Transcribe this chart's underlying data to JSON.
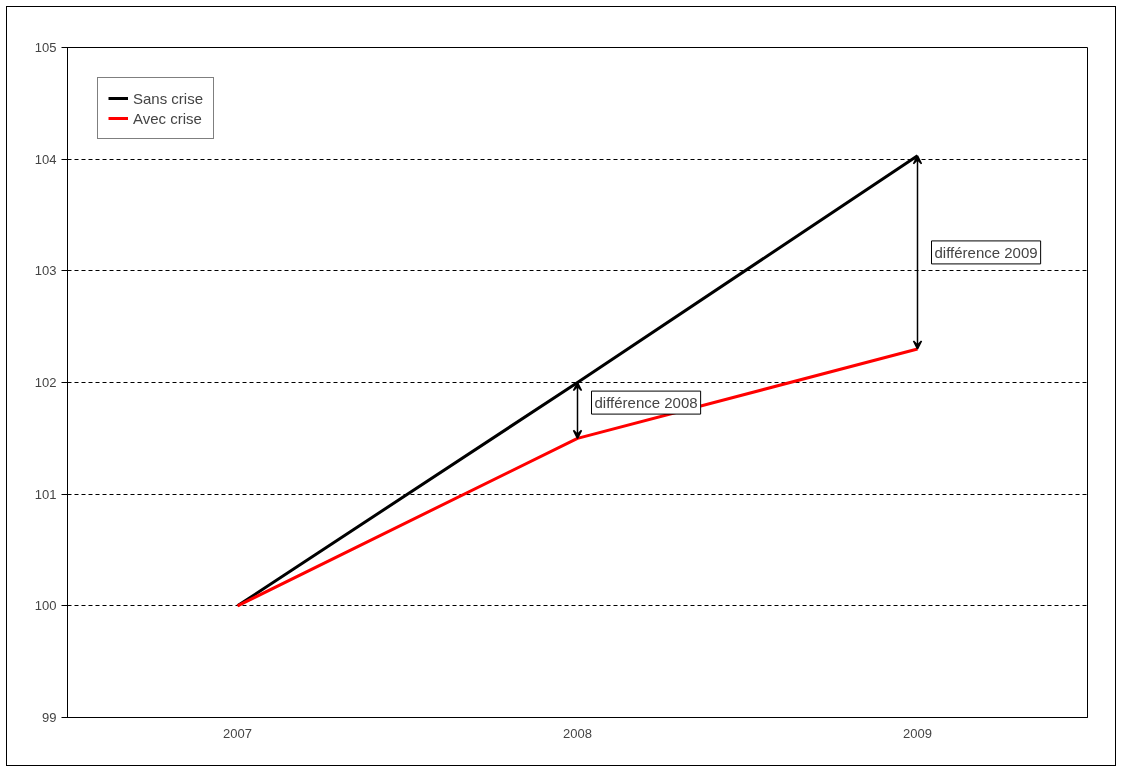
{
  "chart_data": {
    "type": "line",
    "categories": [
      "2007",
      "2008",
      "2009"
    ],
    "series": [
      {
        "name": "Sans crise",
        "color": "#000000",
        "values": [
          100,
          102,
          104.03
        ]
      },
      {
        "name": "Avec crise",
        "color": "#ff0000",
        "values": [
          100,
          101.5,
          102.3
        ]
      }
    ],
    "ylim": [
      99,
      105
    ],
    "yticks": [
      99,
      100,
      101,
      102,
      103,
      104,
      105
    ],
    "grid": "y",
    "legend": "top left",
    "marker": "none",
    "line_style": "solid",
    "annotations": [
      "différence 2008",
      "différence 2009"
    ]
  }
}
